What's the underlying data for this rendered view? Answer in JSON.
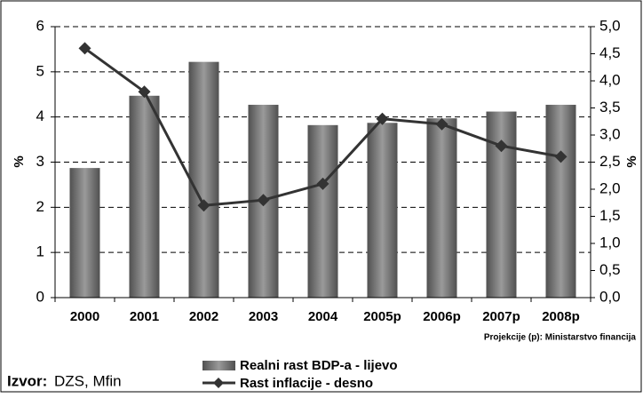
{
  "chart_data": {
    "type": "bar_line",
    "categories": [
      "2000",
      "2001",
      "2002",
      "2003",
      "2004",
      "2005p",
      "2006p",
      "2007p",
      "2008p"
    ],
    "series": [
      {
        "name": "Realni rast BDP-a - lijevo",
        "color": "#7a7a7a",
        "values": [
          2.87,
          4.47,
          5.22,
          4.27,
          3.82,
          3.87,
          3.97,
          4.12,
          4.27
        ]
      },
      {
        "name": "Rast inflacije - desno",
        "color": "#333333",
        "axis": "y2",
        "values": [
          4.6,
          3.8,
          1.7,
          1.8,
          2.1,
          3.3,
          3.2,
          2.8,
          2.6
        ]
      }
    ],
    "ylabel": "%",
    "y2label": "%",
    "ylim": [
      0,
      6
    ],
    "yticks": [
      0,
      1,
      2,
      3,
      4,
      5,
      6
    ],
    "y2lim": [
      0,
      5
    ],
    "y2ticks": [
      {
        "value": 0,
        "label": "0,0"
      },
      {
        "value": 0.5,
        "label": "0,5"
      },
      {
        "value": 1,
        "label": "1,0"
      },
      {
        "value": 1.5,
        "label": "1,5"
      },
      {
        "value": 2,
        "label": "2,0"
      },
      {
        "value": 2.5,
        "label": "2,5"
      },
      {
        "value": 3,
        "label": "3,0"
      },
      {
        "value": 3.5,
        "label": "3,5"
      },
      {
        "value": 4,
        "label": "4,0"
      },
      {
        "value": 4.5,
        "label": "4,5"
      },
      {
        "value": 5,
        "label": "5,0"
      }
    ],
    "grid": true,
    "annotation": "Projekcije (p): Ministarstvo financija",
    "source_label": "Izvor:",
    "source": "DZS, Mfin"
  }
}
